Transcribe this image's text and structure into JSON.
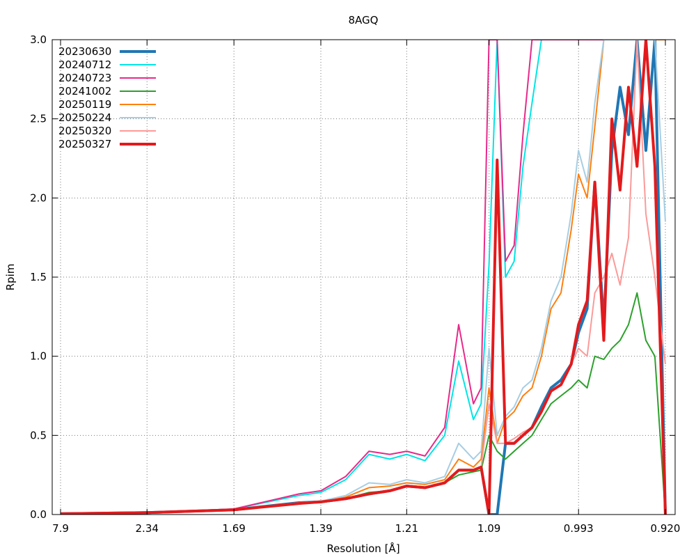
{
  "chart_data": {
    "type": "line",
    "title": "8AGQ",
    "xlabel": "Resolution [Å]",
    "ylabel": "Rpim",
    "ylim": [
      0,
      3.0
    ],
    "grid": true,
    "legend_position": "top-left",
    "x_scale": "resolution shells (reciprocal d-spacing)",
    "x_tick_labels": [
      "7.9",
      "2.34",
      "1.69",
      "1.39",
      "1.21",
      "1.09",
      "0.993",
      "0.920"
    ],
    "y_ticks": [
      0.0,
      0.5,
      1.0,
      1.5,
      2.0,
      2.5,
      3.0
    ],
    "y_tick_labels": [
      "0.0",
      "0.5",
      "1.0",
      "1.5",
      "2.0",
      "2.5",
      "3.0"
    ],
    "x": [
      "7.90",
      "2.34",
      "1.69",
      "1.45",
      "1.39",
      "1.33",
      "1.28",
      "1.24",
      "1.21",
      "1.18",
      "1.15",
      "1.13",
      "1.11",
      "1.10",
      "1.09",
      "1.08",
      "1.07",
      "1.06",
      "1.05",
      "1.04",
      "1.03",
      "1.02",
      "1.01",
      "1.00",
      "0.993",
      "0.985",
      "0.978",
      "0.970",
      "0.963",
      "0.956",
      "0.949",
      "0.942",
      "0.935",
      "0.928",
      "0.920"
    ],
    "series": [
      {
        "name": "20230630",
        "color": "#1f77b4",
        "width": 4,
        "values": [
          0.005,
          0.012,
          0.03,
          0.075,
          0.08,
          0.1,
          0.13,
          0.15,
          0.18,
          0.17,
          0.2,
          0.28,
          0.28,
          0.3,
          0.0,
          0.0,
          0.45,
          0.45,
          0.5,
          0.55,
          0.68,
          0.8,
          0.85,
          0.95,
          1.15,
          1.3,
          2.1,
          1.2,
          2.3,
          2.7,
          2.4,
          3.0,
          2.3,
          3.0,
          0.0
        ]
      },
      {
        "name": "20240712",
        "color": "#00e5e5",
        "width": 2,
        "values": [
          0.005,
          0.012,
          0.035,
          0.12,
          0.14,
          0.22,
          0.38,
          0.35,
          0.38,
          0.34,
          0.5,
          0.97,
          0.6,
          0.7,
          1.58,
          3.0,
          1.5,
          1.6,
          2.2,
          2.6,
          3.0,
          3.0,
          3.0,
          3.0,
          3.0,
          3.0,
          3.0,
          3.0,
          3.0,
          3.0,
          3.0,
          3.0,
          3.0,
          3.0,
          3.0
        ]
      },
      {
        "name": "20240723",
        "color": "#e7298a",
        "width": 2,
        "values": [
          0.005,
          0.012,
          0.035,
          0.13,
          0.15,
          0.24,
          0.4,
          0.38,
          0.4,
          0.37,
          0.55,
          1.2,
          0.7,
          0.8,
          3.0,
          3.0,
          1.6,
          1.7,
          2.4,
          3.0,
          3.0,
          3.0,
          3.0,
          3.0,
          3.0,
          3.0,
          3.0,
          3.0,
          3.0,
          3.0,
          3.0,
          3.0,
          3.0,
          3.0,
          3.0
        ]
      },
      {
        "name": "20241002",
        "color": "#2ca02c",
        "width": 2,
        "values": [
          0.005,
          0.012,
          0.03,
          0.07,
          0.075,
          0.1,
          0.14,
          0.15,
          0.18,
          0.17,
          0.2,
          0.25,
          0.27,
          0.28,
          0.5,
          0.4,
          0.35,
          0.4,
          0.45,
          0.5,
          0.6,
          0.7,
          0.75,
          0.8,
          0.85,
          0.8,
          1.0,
          0.98,
          1.05,
          1.1,
          1.2,
          1.4,
          1.1,
          1.0,
          0.0
        ]
      },
      {
        "name": "20250119",
        "color": "#ff7f0e",
        "width": 2,
        "values": [
          0.005,
          0.012,
          0.03,
          0.07,
          0.08,
          0.11,
          0.17,
          0.18,
          0.2,
          0.19,
          0.22,
          0.35,
          0.3,
          0.35,
          0.8,
          0.45,
          0.6,
          0.65,
          0.75,
          0.8,
          1.0,
          1.3,
          1.4,
          1.8,
          2.15,
          2.0,
          2.45,
          3.0,
          3.0,
          3.0,
          3.0,
          3.0,
          3.0,
          3.0,
          3.0
        ]
      },
      {
        "name": "20250224",
        "color": "#a6cee3",
        "width": 2,
        "values": [
          0.005,
          0.012,
          0.03,
          0.075,
          0.085,
          0.12,
          0.2,
          0.19,
          0.22,
          0.2,
          0.24,
          0.45,
          0.35,
          0.4,
          1.05,
          0.5,
          0.62,
          0.68,
          0.8,
          0.85,
          1.05,
          1.35,
          1.5,
          1.9,
          2.3,
          2.1,
          2.6,
          3.0,
          3.0,
          3.0,
          3.0,
          3.0,
          3.0,
          3.0,
          1.85
        ]
      },
      {
        "name": "20250320",
        "color": "#fb9a99",
        "width": 2,
        "values": [
          0.005,
          0.012,
          0.03,
          0.07,
          0.08,
          0.1,
          0.13,
          0.15,
          0.18,
          0.17,
          0.2,
          0.28,
          0.28,
          0.3,
          0.7,
          0.45,
          0.45,
          0.48,
          0.52,
          0.55,
          0.65,
          0.78,
          0.82,
          0.95,
          1.05,
          1.0,
          1.4,
          1.5,
          1.65,
          1.45,
          1.75,
          3.0,
          1.9,
          1.5,
          0.95
        ]
      },
      {
        "name": "20250327",
        "color": "#e31a1c",
        "width": 4,
        "values": [
          0.005,
          0.012,
          0.03,
          0.07,
          0.08,
          0.1,
          0.13,
          0.15,
          0.18,
          0.17,
          0.2,
          0.28,
          0.28,
          0.3,
          0.0,
          2.24,
          0.45,
          0.45,
          0.5,
          0.55,
          0.65,
          0.78,
          0.82,
          0.95,
          1.2,
          1.35,
          2.1,
          1.1,
          2.5,
          2.05,
          2.7,
          2.2,
          3.0,
          2.2,
          0.0
        ]
      }
    ]
  }
}
